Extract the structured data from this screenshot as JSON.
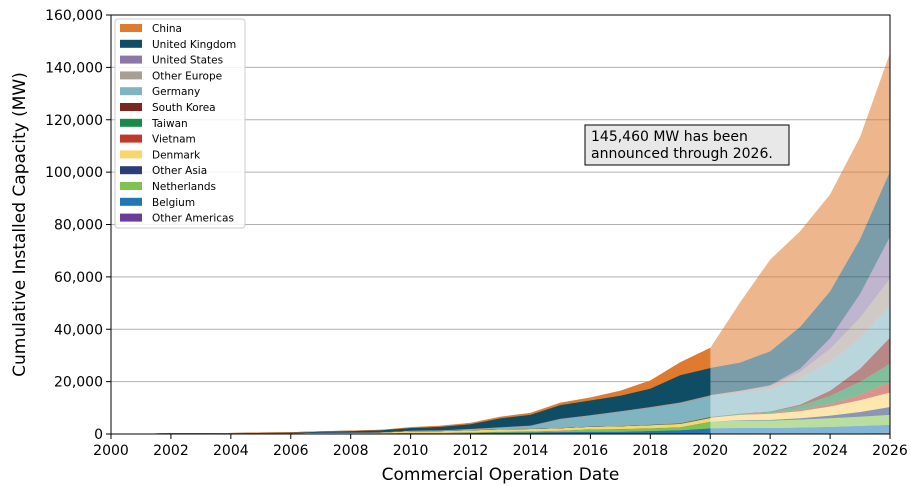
{
  "chart_data": {
    "type": "area",
    "stacked": true,
    "xlabel": "Commercial Operation Date",
    "ylabel": "Cumulative Installed Capacity (MW)",
    "xlim": [
      2000,
      2026
    ],
    "ylim": [
      0,
      160000
    ],
    "x_ticks": [
      2000,
      2002,
      2004,
      2006,
      2008,
      2010,
      2012,
      2014,
      2016,
      2018,
      2020,
      2022,
      2024,
      2026
    ],
    "y_ticks": [
      0,
      20000,
      40000,
      60000,
      80000,
      100000,
      120000,
      140000,
      160000
    ],
    "y_tick_labels": [
      "0",
      "20,000",
      "40,000",
      "60,000",
      "80,000",
      "100,000",
      "120,000",
      "140,000",
      "160,000"
    ],
    "grid": "horizontal",
    "legend_position": "top-left",
    "projection_start": 2020,
    "annotation": [
      "145,460 MW has been",
      "announced through 2026."
    ],
    "x": [
      2000,
      2001,
      2002,
      2003,
      2004,
      2005,
      2006,
      2007,
      2008,
      2009,
      2010,
      2011,
      2012,
      2013,
      2014,
      2015,
      2016,
      2017,
      2018,
      2019,
      2020,
      2021,
      2022,
      2023,
      2024,
      2025,
      2026
    ],
    "series": [
      {
        "name": "Other Americas",
        "color": "#6a3d9a",
        "values": [
          0,
          0,
          0,
          0,
          0,
          0,
          0,
          0,
          0,
          0,
          0,
          0,
          0,
          0,
          0,
          0,
          0,
          0,
          0,
          0,
          0,
          0,
          0,
          100,
          200,
          300,
          500
        ]
      },
      {
        "name": "Belgium",
        "color": "#1f78b4",
        "values": [
          0,
          0,
          0,
          0,
          0,
          0,
          0,
          0,
          0,
          50,
          200,
          200,
          400,
          600,
          700,
          800,
          900,
          900,
          1200,
          1500,
          2200,
          2300,
          2300,
          2400,
          2500,
          2800,
          3000
        ]
      },
      {
        "name": "Netherlands",
        "color": "#7fc450",
        "values": [
          0,
          0,
          0,
          0,
          0,
          100,
          100,
          200,
          200,
          200,
          250,
          250,
          250,
          250,
          300,
          500,
          900,
          1000,
          1000,
          1100,
          2500,
          2800,
          2800,
          3000,
          3300,
          3500,
          3800
        ]
      },
      {
        "name": "Other Asia",
        "color": "#2c3e7a",
        "values": [
          0,
          0,
          0,
          0,
          0,
          0,
          0,
          0,
          0,
          0,
          0,
          0,
          0,
          0,
          0,
          0,
          0,
          0,
          0,
          0,
          0,
          200,
          300,
          500,
          1000,
          1800,
          3000
        ]
      },
      {
        "name": "Denmark",
        "color": "#f9d56e",
        "values": [
          50,
          50,
          150,
          150,
          200,
          300,
          300,
          350,
          400,
          400,
          700,
          750,
          850,
          1000,
          1000,
          1000,
          1050,
          1150,
          1250,
          1350,
          1500,
          2000,
          2300,
          2700,
          3500,
          4500,
          5500
        ]
      },
      {
        "name": "Vietnam",
        "color": "#c0392b",
        "values": [
          0,
          0,
          0,
          0,
          0,
          0,
          0,
          0,
          0,
          0,
          0,
          0,
          0,
          0,
          0,
          0,
          0,
          0,
          0,
          0,
          0,
          100,
          200,
          500,
          1000,
          2000,
          4000
        ]
      },
      {
        "name": "Taiwan",
        "color": "#1a8a4a",
        "values": [
          0,
          0,
          0,
          0,
          0,
          0,
          0,
          0,
          0,
          0,
          0,
          0,
          0,
          0,
          0,
          0,
          0,
          0,
          100,
          150,
          200,
          300,
          500,
          1500,
          3000,
          5000,
          7000
        ]
      },
      {
        "name": "South Korea",
        "color": "#7b2620",
        "values": [
          0,
          0,
          0,
          0,
          0,
          0,
          0,
          0,
          0,
          0,
          0,
          0,
          0,
          0,
          0,
          0,
          0,
          0,
          0,
          0,
          100,
          100,
          200,
          500,
          2000,
          5000,
          10000
        ]
      },
      {
        "name": "Germany",
        "color": "#7fb4c0",
        "values": [
          0,
          0,
          0,
          0,
          0,
          0,
          0,
          0,
          0,
          0,
          100,
          200,
          300,
          600,
          1000,
          3300,
          4100,
          5400,
          6400,
          7500,
          7700,
          7800,
          8500,
          10000,
          11000,
          11500,
          12500
        ]
      },
      {
        "name": "Other Europe",
        "color": "#a89f97",
        "values": [
          0,
          0,
          0,
          0,
          0,
          0,
          0,
          0,
          0,
          50,
          100,
          100,
          200,
          200,
          300,
          300,
          300,
          300,
          400,
          500,
          600,
          800,
          1200,
          2500,
          5000,
          8000,
          10000
        ]
      },
      {
        "name": "United States",
        "color": "#8c78a8",
        "values": [
          0,
          0,
          0,
          0,
          0,
          0,
          0,
          0,
          0,
          0,
          0,
          0,
          0,
          0,
          0,
          0,
          30,
          30,
          30,
          30,
          40,
          100,
          300,
          1200,
          4000,
          9000,
          16000
        ]
      },
      {
        "name": "United Kingdom",
        "color": "#0e4d64",
        "values": [
          0,
          0,
          0,
          0,
          100,
          100,
          200,
          400,
          600,
          800,
          1000,
          1300,
          1800,
          3400,
          4100,
          5200,
          5600,
          5900,
          7000,
          10400,
          10400,
          10800,
          13000,
          16000,
          18000,
          21000,
          25000
        ]
      },
      {
        "name": "China",
        "color": "#e07a2e",
        "values": [
          0,
          0,
          0,
          0,
          0,
          0,
          0,
          0,
          0,
          0,
          200,
          300,
          400,
          500,
          600,
          800,
          1000,
          1800,
          3000,
          4800,
          7600,
          23000,
          35000,
          36500,
          37000,
          39000,
          45160
        ]
      }
    ]
  }
}
